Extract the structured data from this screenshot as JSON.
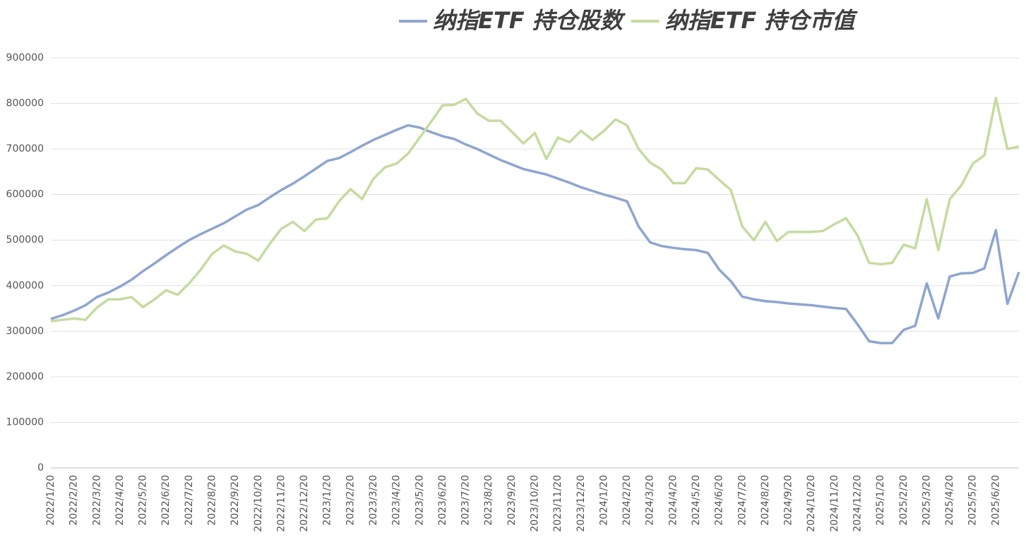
{
  "chart_data": {
    "type": "line",
    "categories": [
      "2022/1/20",
      null,
      "2022/2/20",
      null,
      "2022/3/20",
      null,
      "2022/4/20",
      null,
      "2022/5/20",
      null,
      "2022/6/20",
      null,
      "2022/7/20",
      null,
      "2022/8/20",
      null,
      "2022/9/20",
      null,
      "2022/10/20",
      null,
      "2022/11/20",
      null,
      "2022/12/20",
      null,
      "2023/1/20",
      null,
      "2023/2/20",
      null,
      "2023/3/20",
      null,
      "2023/4/20",
      null,
      "2023/5/20",
      null,
      "2023/6/20",
      null,
      "2023/7/20",
      null,
      "2023/8/20",
      null,
      "2023/9/20",
      null,
      "2023/10/20",
      null,
      "2023/11/20",
      null,
      "2023/12/20",
      null,
      "2024/1/20",
      null,
      "2024/2/20",
      null,
      "2024/3/20",
      null,
      "2024/4/20",
      null,
      "2024/5/20",
      null,
      "2024/6/20",
      null,
      "2024/7/20",
      null,
      "2024/8/20",
      null,
      "2024/9/20",
      null,
      "2024/10/20",
      null,
      "2024/11/20",
      null,
      "2024/12/20",
      null,
      "2025/1/20",
      null,
      "2025/2/20",
      null,
      "2025/3/20",
      null,
      "2025/4/20",
      null,
      "2025/5/20",
      null,
      "2025/6/20",
      null,
      null
    ],
    "series": [
      {
        "name": "纳指ETF 持仓股数",
        "color": "#8ea5cf",
        "values": [
          327000,
          335000,
          345000,
          357000,
          375000,
          385000,
          398000,
          413000,
          432000,
          449000,
          467000,
          484000,
          500000,
          513000,
          525000,
          537000,
          552000,
          567000,
          577000,
          594000,
          610000,
          624000,
          640000,
          657000,
          674000,
          680000,
          693000,
          707000,
          720000,
          731000,
          742000,
          752000,
          747000,
          737000,
          728000,
          722000,
          710000,
          700000,
          688000,
          676000,
          666000,
          656000,
          650000,
          644000,
          635000,
          626000,
          616000,
          608000,
          600000,
          593000,
          585000,
          530000,
          495000,
          487000,
          483000,
          480000,
          478000,
          472000,
          435000,
          410000,
          376000,
          370000,
          366000,
          364000,
          361000,
          359000,
          357000,
          354000,
          351000,
          349000,
          315000,
          278000,
          274000,
          274000,
          303000,
          312000,
          405000,
          328000,
          420000,
          427000,
          428000,
          438000,
          522000,
          360000,
          430000
        ]
      },
      {
        "name": "纳指ETF 持仓市值",
        "color": "#c5dba0",
        "values": [
          322000,
          325000,
          328000,
          325000,
          352000,
          370000,
          370000,
          375000,
          353000,
          370000,
          390000,
          380000,
          405000,
          435000,
          470000,
          488000,
          475000,
          470000,
          455000,
          492000,
          525000,
          540000,
          520000,
          545000,
          548000,
          585000,
          612000,
          590000,
          635000,
          660000,
          668000,
          690000,
          725000,
          760000,
          796000,
          797000,
          810000,
          778000,
          762000,
          762000,
          738000,
          712000,
          735000,
          678000,
          725000,
          715000,
          740000,
          720000,
          740000,
          765000,
          752000,
          700000,
          670000,
          655000,
          625000,
          625000,
          658000,
          655000,
          632000,
          610000,
          530000,
          500000,
          540000,
          498000,
          518000,
          518000,
          518000,
          520000,
          535000,
          548000,
          510000,
          450000,
          447000,
          450000,
          490000,
          482000,
          590000,
          478000,
          590000,
          620000,
          668000,
          686000,
          812000,
          700000,
          705000
        ]
      }
    ],
    "ylim": [
      0,
      900000
    ],
    "yticks": [
      0,
      100000,
      200000,
      300000,
      400000,
      500000,
      600000,
      700000,
      800000,
      900000
    ],
    "grid": true
  }
}
